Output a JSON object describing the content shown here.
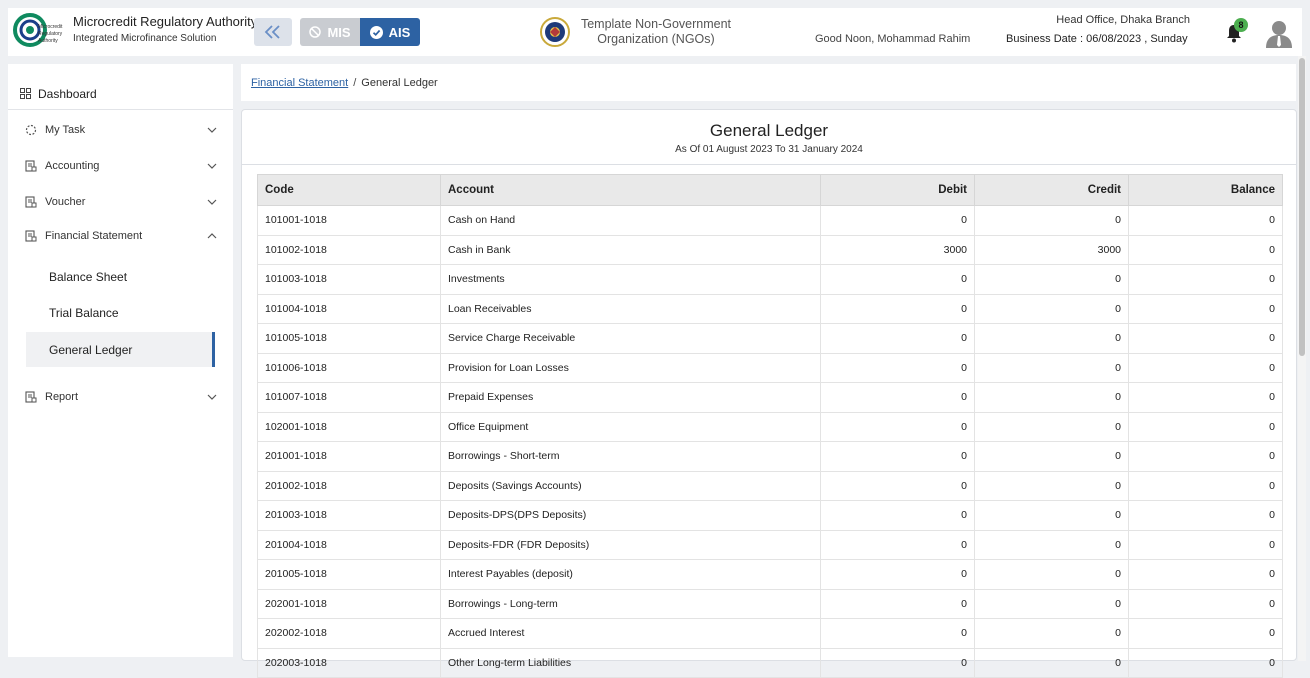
{
  "header": {
    "org_title": "Microcredit Regulatory Authority",
    "org_subtitle": "Integrated Microfinance Solution",
    "logo_text": "Microcredit Regulatory Authority",
    "mis_label": "MIS",
    "ais_label": "AIS",
    "ngo_name": "Template Non-Government Organization (NGOs)",
    "greeting": "Good Noon, Mohammad Rahim",
    "branch": "Head Office, Dhaka Branch",
    "business_date": "Business Date : 06/08/2023 , Sunday",
    "notification_count": "8",
    "accent_color": "#2d62a3"
  },
  "sidebar": {
    "dashboard": "Dashboard",
    "menu": [
      {
        "label": "My Task",
        "icon": "loader-icon"
      },
      {
        "label": "Accounting",
        "icon": "ledger-icon"
      },
      {
        "label": "Voucher",
        "icon": "ledger-icon"
      },
      {
        "label": "Financial Statement",
        "icon": "ledger-icon",
        "expanded": true
      },
      {
        "label": "Report",
        "icon": "ledger-icon"
      }
    ],
    "sub_items": [
      "Balance Sheet",
      "Trial Balance",
      "General Ledger"
    ],
    "active_sub_item": "General Ledger"
  },
  "breadcrumb": {
    "parent": "Financial Statement",
    "separator": "/",
    "current": "General Ledger"
  },
  "report": {
    "title": "General Ledger",
    "subtitle": "As Of 01 August 2023 To 31 January 2024",
    "columns": [
      "Code",
      "Account",
      "Debit",
      "Credit",
      "Balance"
    ],
    "rows": [
      [
        "101001-1018",
        "Cash on Hand",
        "0",
        "0",
        "0"
      ],
      [
        "101002-1018",
        "Cash in Bank",
        "3000",
        "3000",
        "0"
      ],
      [
        "101003-1018",
        "Investments",
        "0",
        "0",
        "0"
      ],
      [
        "101004-1018",
        "Loan Receivables",
        "0",
        "0",
        "0"
      ],
      [
        "101005-1018",
        "Service Charge Receivable",
        "0",
        "0",
        "0"
      ],
      [
        "101006-1018",
        "Provision for Loan Losses",
        "0",
        "0",
        "0"
      ],
      [
        "101007-1018",
        "Prepaid Expenses",
        "0",
        "0",
        "0"
      ],
      [
        "102001-1018",
        "Office Equipment",
        "0",
        "0",
        "0"
      ],
      [
        "201001-1018",
        "Borrowings - Short-term",
        "0",
        "0",
        "0"
      ],
      [
        "201002-1018",
        "Deposits (Savings Accounts)",
        "0",
        "0",
        "0"
      ],
      [
        "201003-1018",
        "Deposits-DPS(DPS Deposits)",
        "0",
        "0",
        "0"
      ],
      [
        "201004-1018",
        "Deposits-FDR (FDR Deposits)",
        "0",
        "0",
        "0"
      ],
      [
        "201005-1018",
        "Interest Payables (deposit)",
        "0",
        "0",
        "0"
      ],
      [
        "202001-1018",
        "Borrowings - Long-term",
        "0",
        "0",
        "0"
      ],
      [
        "202002-1018",
        "Accrued Interest",
        "0",
        "0",
        "0"
      ],
      [
        "202003-1018",
        "Other Long-term Liabilities",
        "0",
        "0",
        "0"
      ]
    ]
  }
}
